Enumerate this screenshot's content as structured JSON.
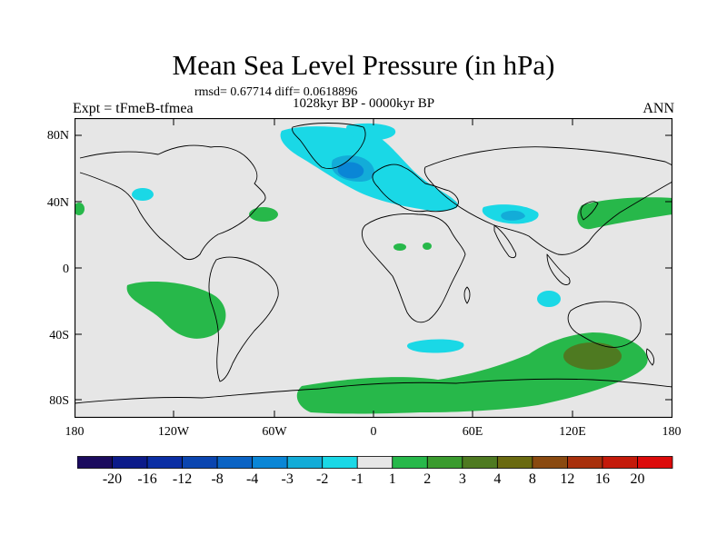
{
  "title": "Mean Sea Level Pressure (in hPa)",
  "stats_line": "rmsd= 0.67714 diff= 0.0618896",
  "period_line": "1028kyr BP - 0000kyr BP",
  "experiment_label": "Expt = tFmeB-tfmea",
  "season_label": "ANN",
  "lat_ticks": [
    "80N",
    "40N",
    "0",
    "40S",
    "80S"
  ],
  "lon_ticks": [
    "180",
    "120W",
    "60W",
    "0",
    "60E",
    "120E",
    "180"
  ],
  "colorbar": {
    "labels": [
      "-20",
      "-16",
      "-12",
      "-8",
      "-4",
      "-3",
      "-2",
      "-1",
      "1",
      "2",
      "3",
      "4",
      "8",
      "12",
      "16",
      "20"
    ],
    "colors": [
      "#1b0b5e",
      "#0c1b8a",
      "#0a2ea4",
      "#0a45b0",
      "#0a63c4",
      "#0a86d6",
      "#13acd8",
      "#1ad8e6",
      "#e6e6e6",
      "#27b84a",
      "#3a9b2e",
      "#4e7a21",
      "#6a6a10",
      "#8a4a10",
      "#a8300c",
      "#c41a0a",
      "#dc0a0a"
    ]
  },
  "legend": {
    "background": "#e6e6e6",
    "light_cyan": "#1ad8e6",
    "mid_cyan": "#13acd8",
    "deep_blue": "#0a86d6",
    "green": "#27b84a",
    "olive": "#4e7a21"
  }
}
